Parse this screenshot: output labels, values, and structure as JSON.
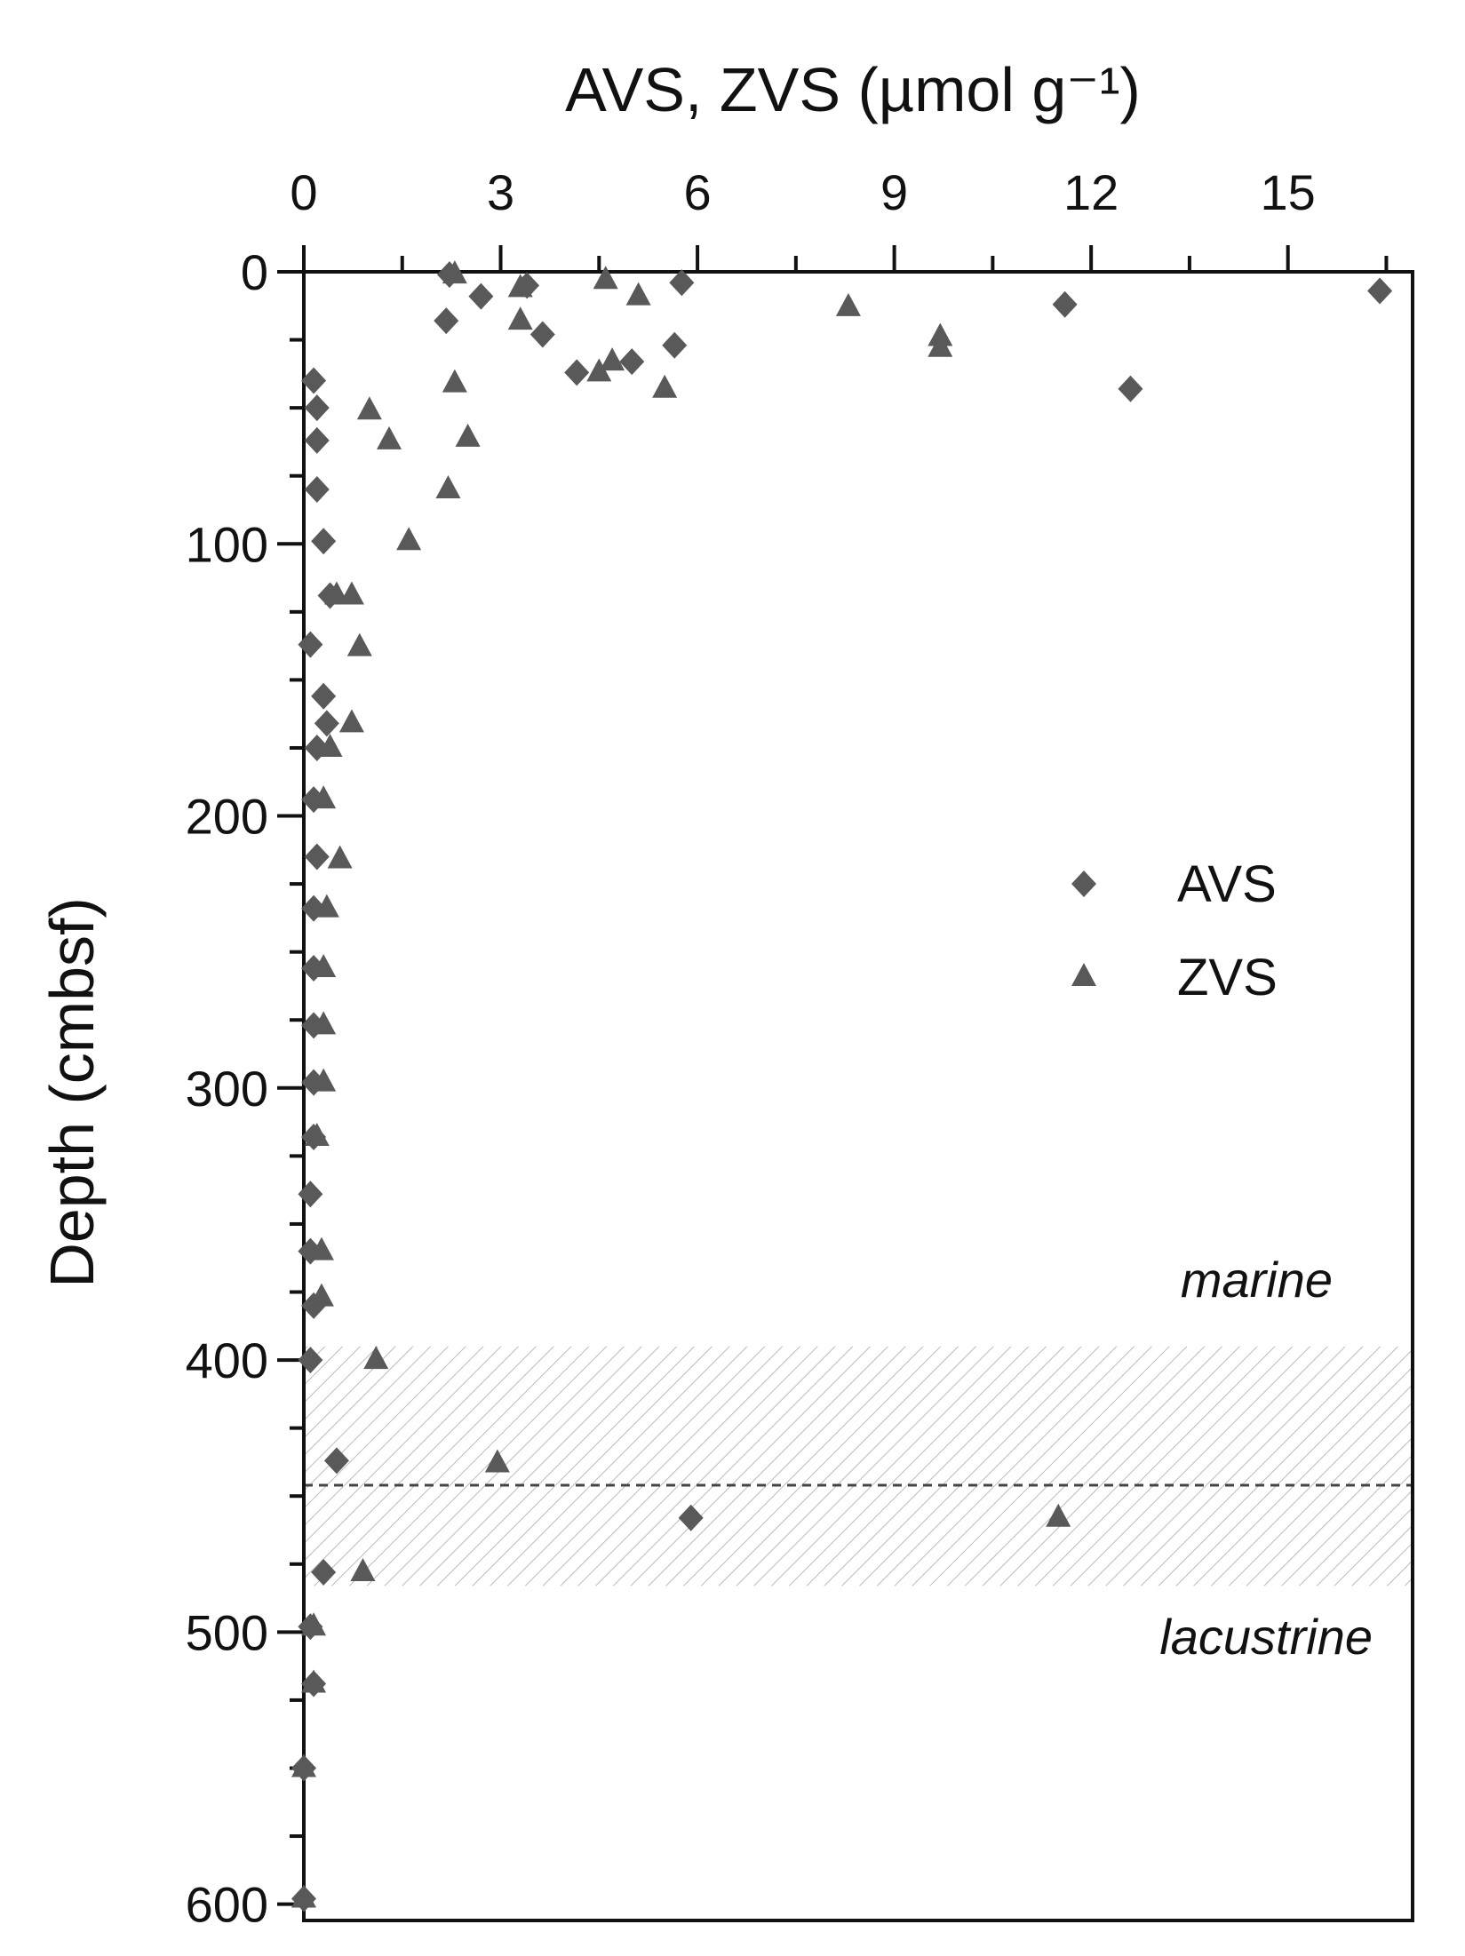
{
  "chart_data": {
    "type": "scatter",
    "title": "AVS, ZVS (µmol g⁻¹)",
    "xlabel": "AVS, ZVS (µmol g⁻¹)",
    "ylabel": "Depth (cmbsf)",
    "xlim": [
      0,
      16.9
    ],
    "ylim": [
      0,
      606
    ],
    "y_inverted": true,
    "x_axis_position": "top",
    "x_ticks": [
      0,
      3,
      6,
      9,
      12,
      15
    ],
    "y_ticks": [
      0,
      100,
      200,
      300,
      400,
      500,
      600
    ],
    "grid": false,
    "legend_position": "right-middle",
    "series": [
      {
        "name": "AVS",
        "marker": "diamond",
        "color": "#595959",
        "points": [
          [
            2.22,
            1
          ],
          [
            2.7,
            9
          ],
          [
            2.17,
            18
          ],
          [
            3.4,
            5
          ],
          [
            3.64,
            23
          ],
          [
            4.16,
            37
          ],
          [
            5.0,
            33
          ],
          [
            5.65,
            27
          ],
          [
            5.76,
            4
          ],
          [
            11.6,
            12
          ],
          [
            12.6,
            43
          ],
          [
            16.4,
            7
          ],
          [
            0.15,
            40
          ],
          [
            0.2,
            50
          ],
          [
            0.2,
            62
          ],
          [
            0.2,
            80
          ],
          [
            0.3,
            99
          ],
          [
            0.4,
            119
          ],
          [
            0.1,
            137
          ],
          [
            0.3,
            156
          ],
          [
            0.35,
            166
          ],
          [
            0.2,
            175
          ],
          [
            0.15,
            194
          ],
          [
            0.2,
            215
          ],
          [
            0.15,
            234
          ],
          [
            0.15,
            256
          ],
          [
            0.15,
            277
          ],
          [
            0.15,
            298
          ],
          [
            0.15,
            318
          ],
          [
            0.1,
            339
          ],
          [
            0.1,
            360
          ],
          [
            0.15,
            380
          ],
          [
            0.1,
            400
          ],
          [
            0.5,
            437
          ],
          [
            5.9,
            458
          ],
          [
            0.3,
            478
          ],
          [
            0.1,
            498
          ],
          [
            0.15,
            519
          ],
          [
            0.0,
            550
          ],
          [
            0.0,
            598
          ]
        ]
      },
      {
        "name": "ZVS",
        "marker": "triangle",
        "color": "#595959",
        "points": [
          [
            2.3,
            1
          ],
          [
            3.3,
            6
          ],
          [
            4.6,
            3
          ],
          [
            5.1,
            9
          ],
          [
            8.3,
            13
          ],
          [
            3.3,
            18
          ],
          [
            9.7,
            24
          ],
          [
            9.7,
            28
          ],
          [
            2.3,
            41
          ],
          [
            5.5,
            43
          ],
          [
            4.5,
            37
          ],
          [
            4.7,
            33
          ],
          [
            1.0,
            51
          ],
          [
            1.3,
            62
          ],
          [
            2.5,
            61
          ],
          [
            2.2,
            80
          ],
          [
            1.6,
            99
          ],
          [
            0.73,
            119
          ],
          [
            0.5,
            119
          ],
          [
            0.85,
            138
          ],
          [
            0.73,
            166
          ],
          [
            0.4,
            175
          ],
          [
            0.3,
            194
          ],
          [
            0.55,
            216
          ],
          [
            0.35,
            234
          ],
          [
            0.3,
            256
          ],
          [
            0.3,
            277
          ],
          [
            0.3,
            298
          ],
          [
            0.2,
            318
          ],
          [
            0.27,
            360
          ],
          [
            0.27,
            377
          ],
          [
            1.1,
            400
          ],
          [
            2.95,
            438
          ],
          [
            11.5,
            458
          ],
          [
            0.9,
            478
          ],
          [
            0.15,
            498
          ],
          [
            0.15,
            519
          ],
          [
            0.0,
            550
          ],
          [
            0.0,
            598
          ]
        ]
      }
    ],
    "annotations": {
      "transition_band": [
        395,
        483
      ],
      "boundary_depth": 446,
      "upper_label": "marine",
      "lower_label": "lacustrine"
    }
  }
}
